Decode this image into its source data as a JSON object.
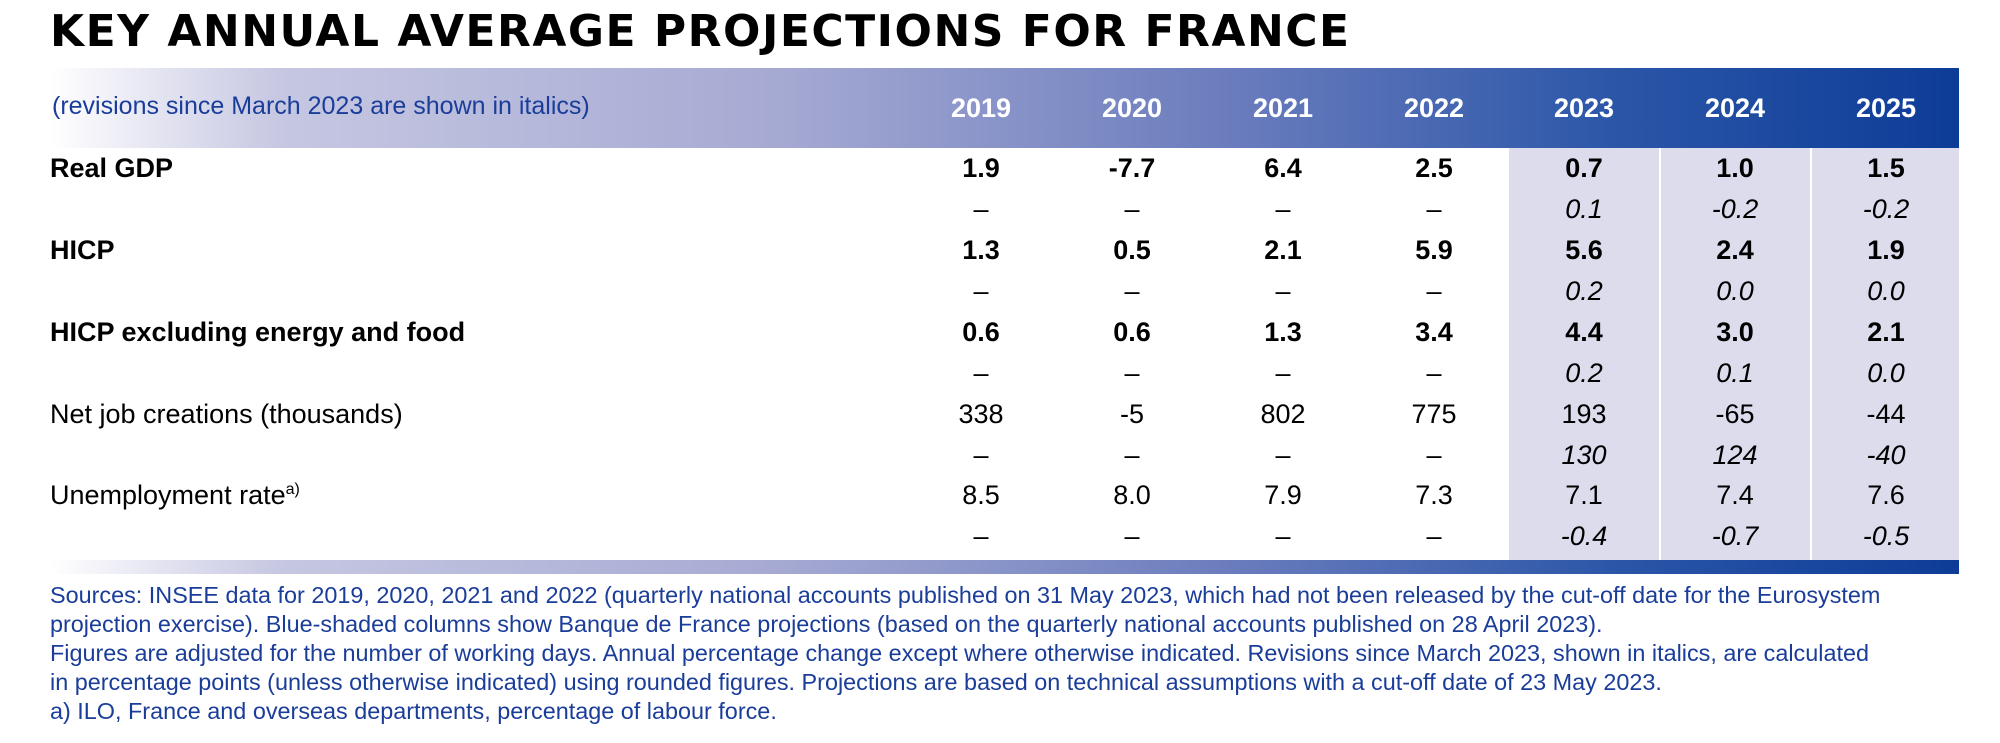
{
  "title": "KEY ANNUAL AVERAGE PROJECTIONS FOR FRANCE",
  "revisions_note": "(revisions since March 2023 are shown in italics)",
  "years": [
    "2019",
    "2020",
    "2021",
    "2022",
    "2023",
    "2024",
    "2025"
  ],
  "rows": [
    {
      "label": "Real GDP",
      "values": [
        "1.9",
        "-7.7",
        "6.4",
        "2.5",
        "0.7",
        "1.0",
        "1.5"
      ],
      "revisions": [
        "–",
        "–",
        "–",
        "–",
        "0.1",
        "-0.2",
        "-0.2"
      ]
    },
    {
      "label": "HICP",
      "values": [
        "1.3",
        "0.5",
        "2.1",
        "5.9",
        "5.6",
        "2.4",
        "1.9"
      ],
      "revisions": [
        "–",
        "–",
        "–",
        "–",
        "0.2",
        "0.0",
        "0.0"
      ]
    },
    {
      "label": "HICP excluding energy and food",
      "values": [
        "0.6",
        "0.6",
        "1.3",
        "3.4",
        "4.4",
        "3.0",
        "2.1"
      ],
      "revisions": [
        "–",
        "–",
        "–",
        "–",
        "0.2",
        "0.1",
        "0.0"
      ]
    },
    {
      "label": "Net job creations (thousands)",
      "values": [
        "338",
        "-5",
        "802",
        "775",
        "193",
        "-65",
        "-44"
      ],
      "revisions": [
        "–",
        "–",
        "–",
        "–",
        "130",
        "124",
        "-40"
      ]
    },
    {
      "label": "Unemployment rate",
      "label_sup": "a)",
      "values": [
        "8.5",
        "8.0",
        "7.9",
        "7.3",
        "7.1",
        "7.4",
        "7.6"
      ],
      "revisions": [
        "–",
        "–",
        "–",
        "–",
        "-0.4",
        "-0.7",
        "-0.5"
      ]
    }
  ],
  "footnotes": [
    "Sources: INSEE data for 2019, 2020, 2021 and 2022 (quarterly national accounts published on 31 May 2023, which had not been released by the cut-off date for the Eurosystem",
    "projection exercise). Blue-shaded columns show Banque de France projections (based on the quarterly national accounts published on 28 April 2023).",
    "Figures are adjusted for the number of working days. Annual percentage change except where otherwise indicated. Revisions since March 2023, shown in italics, are calculated",
    "in percentage points (unless otherwise indicated) using rounded figures. Projections are based on technical assumptions with a cut-off date of 23 May 2023.",
    "a)  ILO, France and overseas departments, percentage of labour force."
  ],
  "colors": {
    "header_dark": "#0d3c97",
    "header_light": "#c6c7e2",
    "projection_shade": "#dcdced",
    "footnote_text": "#1a3d99"
  }
}
